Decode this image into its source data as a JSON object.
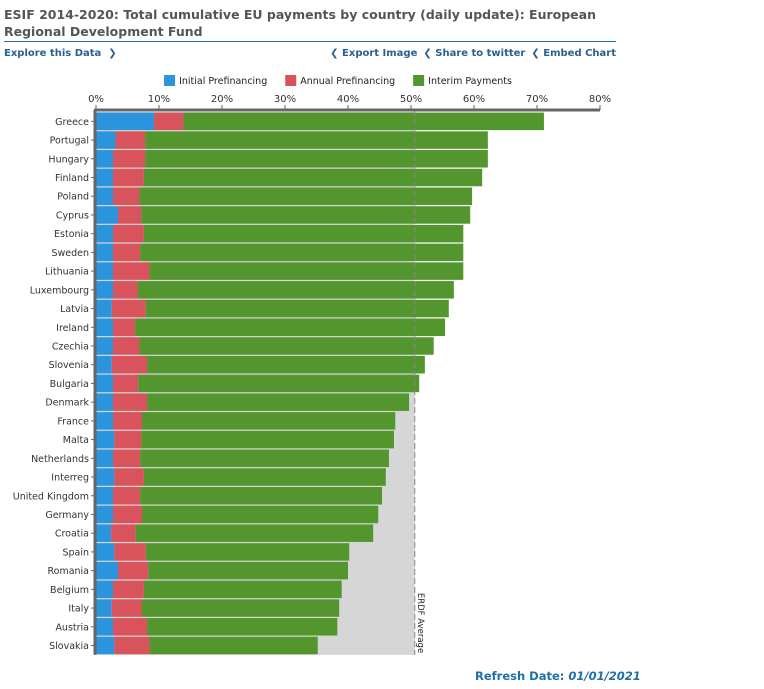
{
  "header": {
    "title": "ESIF 2014-2020: Total cumulative EU payments by country (daily update): European Regional Development Fund"
  },
  "toolbar": {
    "explore": "Explore this Data",
    "export": "Export Image",
    "share": "Share to twitter",
    "embed": "Embed Chart"
  },
  "footer": {
    "refresh_label": "Refresh Date:",
    "refresh_date": "01/01/2021"
  },
  "chart_data": {
    "type": "bar",
    "orientation": "horizontal",
    "stacked": true,
    "xlim": [
      0,
      80
    ],
    "ticks": [
      "0%",
      "10%",
      "20%",
      "30%",
      "40%",
      "50%",
      "60%",
      "70%",
      "80%"
    ],
    "tick_values": [
      0,
      10,
      20,
      30,
      40,
      50,
      60,
      70,
      80
    ],
    "legend_position": "top",
    "categories": [
      "Greece",
      "Portugal",
      "Hungary",
      "Finland",
      "Poland",
      "Cyprus",
      "Estonia",
      "Sweden",
      "Lithuania",
      "Luxembourg",
      "Latvia",
      "Ireland",
      "Czechia",
      "Slovenia",
      "Bulgaria",
      "Denmark",
      "France",
      "Malta",
      "Netherlands",
      "Interreg",
      "United Kingdom",
      "Germany",
      "Croatia",
      "Spain",
      "Romania",
      "Belgium",
      "Italy",
      "Austria",
      "Slovakia"
    ],
    "series": [
      {
        "name": "Initial Prefinancing",
        "color": "#2a94dd",
        "values": [
          9.2,
          3.1,
          2.7,
          2.7,
          2.7,
          3.5,
          2.7,
          2.7,
          2.7,
          2.7,
          2.5,
          2.7,
          2.7,
          2.5,
          2.7,
          2.7,
          2.7,
          2.9,
          2.7,
          2.9,
          2.7,
          2.7,
          2.4,
          2.9,
          3.5,
          2.7,
          2.5,
          2.7,
          2.9
        ]
      },
      {
        "name": "Annual Prefinancing",
        "color": "#d9535c",
        "values": [
          4.7,
          4.7,
          5.1,
          4.9,
          4.2,
          3.7,
          4.9,
          4.3,
          5.8,
          3.9,
          5.4,
          3.5,
          4.2,
          5.6,
          4.0,
          5.4,
          4.6,
          4.3,
          4.3,
          4.7,
          4.3,
          4.6,
          3.9,
          5.0,
          4.8,
          4.9,
          4.8,
          5.4,
          5.6
        ]
      },
      {
        "name": "Interim Payments",
        "color": "#53962e",
        "values": [
          57.2,
          54.4,
          54.4,
          53.7,
          52.8,
          52.2,
          50.7,
          51.3,
          49.8,
          50.2,
          48.1,
          49.2,
          46.7,
          44.1,
          44.6,
          41.6,
          40.2,
          40.1,
          39.5,
          38.4,
          38.4,
          37.5,
          37.7,
          32.3,
          31.7,
          31.4,
          31.3,
          30.2,
          26.7
        ]
      }
    ],
    "reference_line": {
      "label": "ERDF Average",
      "value": 50.6,
      "background": "#d6d6d6"
    }
  }
}
